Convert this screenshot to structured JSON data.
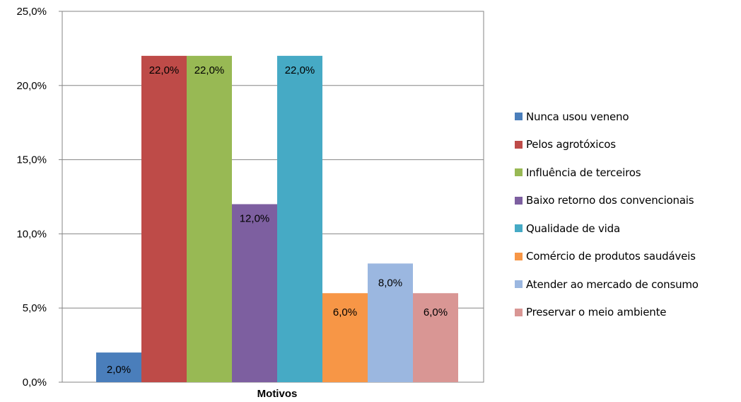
{
  "chart_data": {
    "type": "bar",
    "xlabel": "Motivos",
    "ylim": [
      0,
      25
    ],
    "yticks": [
      "0,0%",
      "5,0%",
      "10,0%",
      "15,0%",
      "20,0%",
      "25,0%"
    ],
    "ytick_values": [
      0,
      5,
      10,
      15,
      20,
      25
    ],
    "grid": true,
    "legend_position": "right",
    "series": [
      {
        "name": "Nunca usou veneno",
        "value": 2.0,
        "label": "2,0%",
        "color": "#4a7ebb"
      },
      {
        "name": "Pelos agrotóxicos",
        "value": 22.0,
        "label": "22,0%",
        "color": "#be4b48"
      },
      {
        "name": "Influência de terceiros",
        "value": 22.0,
        "label": "22,0%",
        "color": "#98b954"
      },
      {
        "name": "Baixo retorno dos convencionais",
        "value": 12.0,
        "label": "12,0%",
        "color": "#7d5fa0"
      },
      {
        "name": "Qualidade de vida",
        "value": 22.0,
        "label": "22,0%",
        "color": "#46aac5"
      },
      {
        "name": "Comércio de produtos saudáveis",
        "value": 6.0,
        "label": "6,0%",
        "color": "#f79646"
      },
      {
        "name": "Atender ao mercado de consumo",
        "value": 8.0,
        "label": "8,0%",
        "color": "#9bb7e0"
      },
      {
        "name": "Preservar o meio ambiente",
        "value": 6.0,
        "label": "6,0%",
        "color": "#d99694"
      }
    ]
  }
}
